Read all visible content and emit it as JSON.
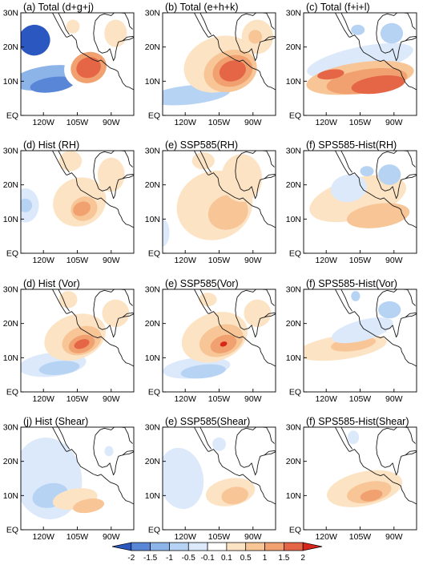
{
  "figure": {
    "panels": [
      {
        "title": "(a) Total (d+g+j)",
        "field": "total_a"
      },
      {
        "title": "(b) Total (e+h+k)",
        "field": "total_b"
      },
      {
        "title": "(c) Total (f+i+l)",
        "field": "total_c"
      },
      {
        "title": "(d) Hist (RH)",
        "field": "rh_hist"
      },
      {
        "title": "(e) SSP585(RH)",
        "field": "rh_ssp"
      },
      {
        "title": "(f) SPS585-Hist(RH)",
        "field": "rh_diff"
      },
      {
        "title": "(d) Hist (Vor)",
        "field": "vor_hist"
      },
      {
        "title": "(e) SSP585(Vor)",
        "field": "vor_ssp"
      },
      {
        "title": "(f) SPS585-Hist(Vor)",
        "field": "vor_diff"
      },
      {
        "title": "(j) Hist (Shear)",
        "field": "shear_hist"
      },
      {
        "title": "(e) SSP585(Shear)",
        "field": "shear_ssp"
      },
      {
        "title": "(f) SPS585-Hist(Shear)",
        "field": "shear_diff"
      }
    ],
    "lat_labels": [
      "30N",
      "20N",
      "10N",
      "EQ"
    ],
    "lon_labels": [
      "120W",
      "105W",
      "90W"
    ]
  },
  "colorbar": {
    "labels": [
      "-2",
      "-1.5",
      "-1",
      "-0.5",
      "-0.1",
      "0.1",
      "0.5",
      "1",
      "1.5",
      "2"
    ],
    "colors": [
      "#2b58c0",
      "#5a86d8",
      "#8db4e8",
      "#b6d3f4",
      "#dbe9fb",
      "#ffffff",
      "#fce3c4",
      "#f7c596",
      "#f1a170",
      "#e56647",
      "#d8261a"
    ]
  }
}
